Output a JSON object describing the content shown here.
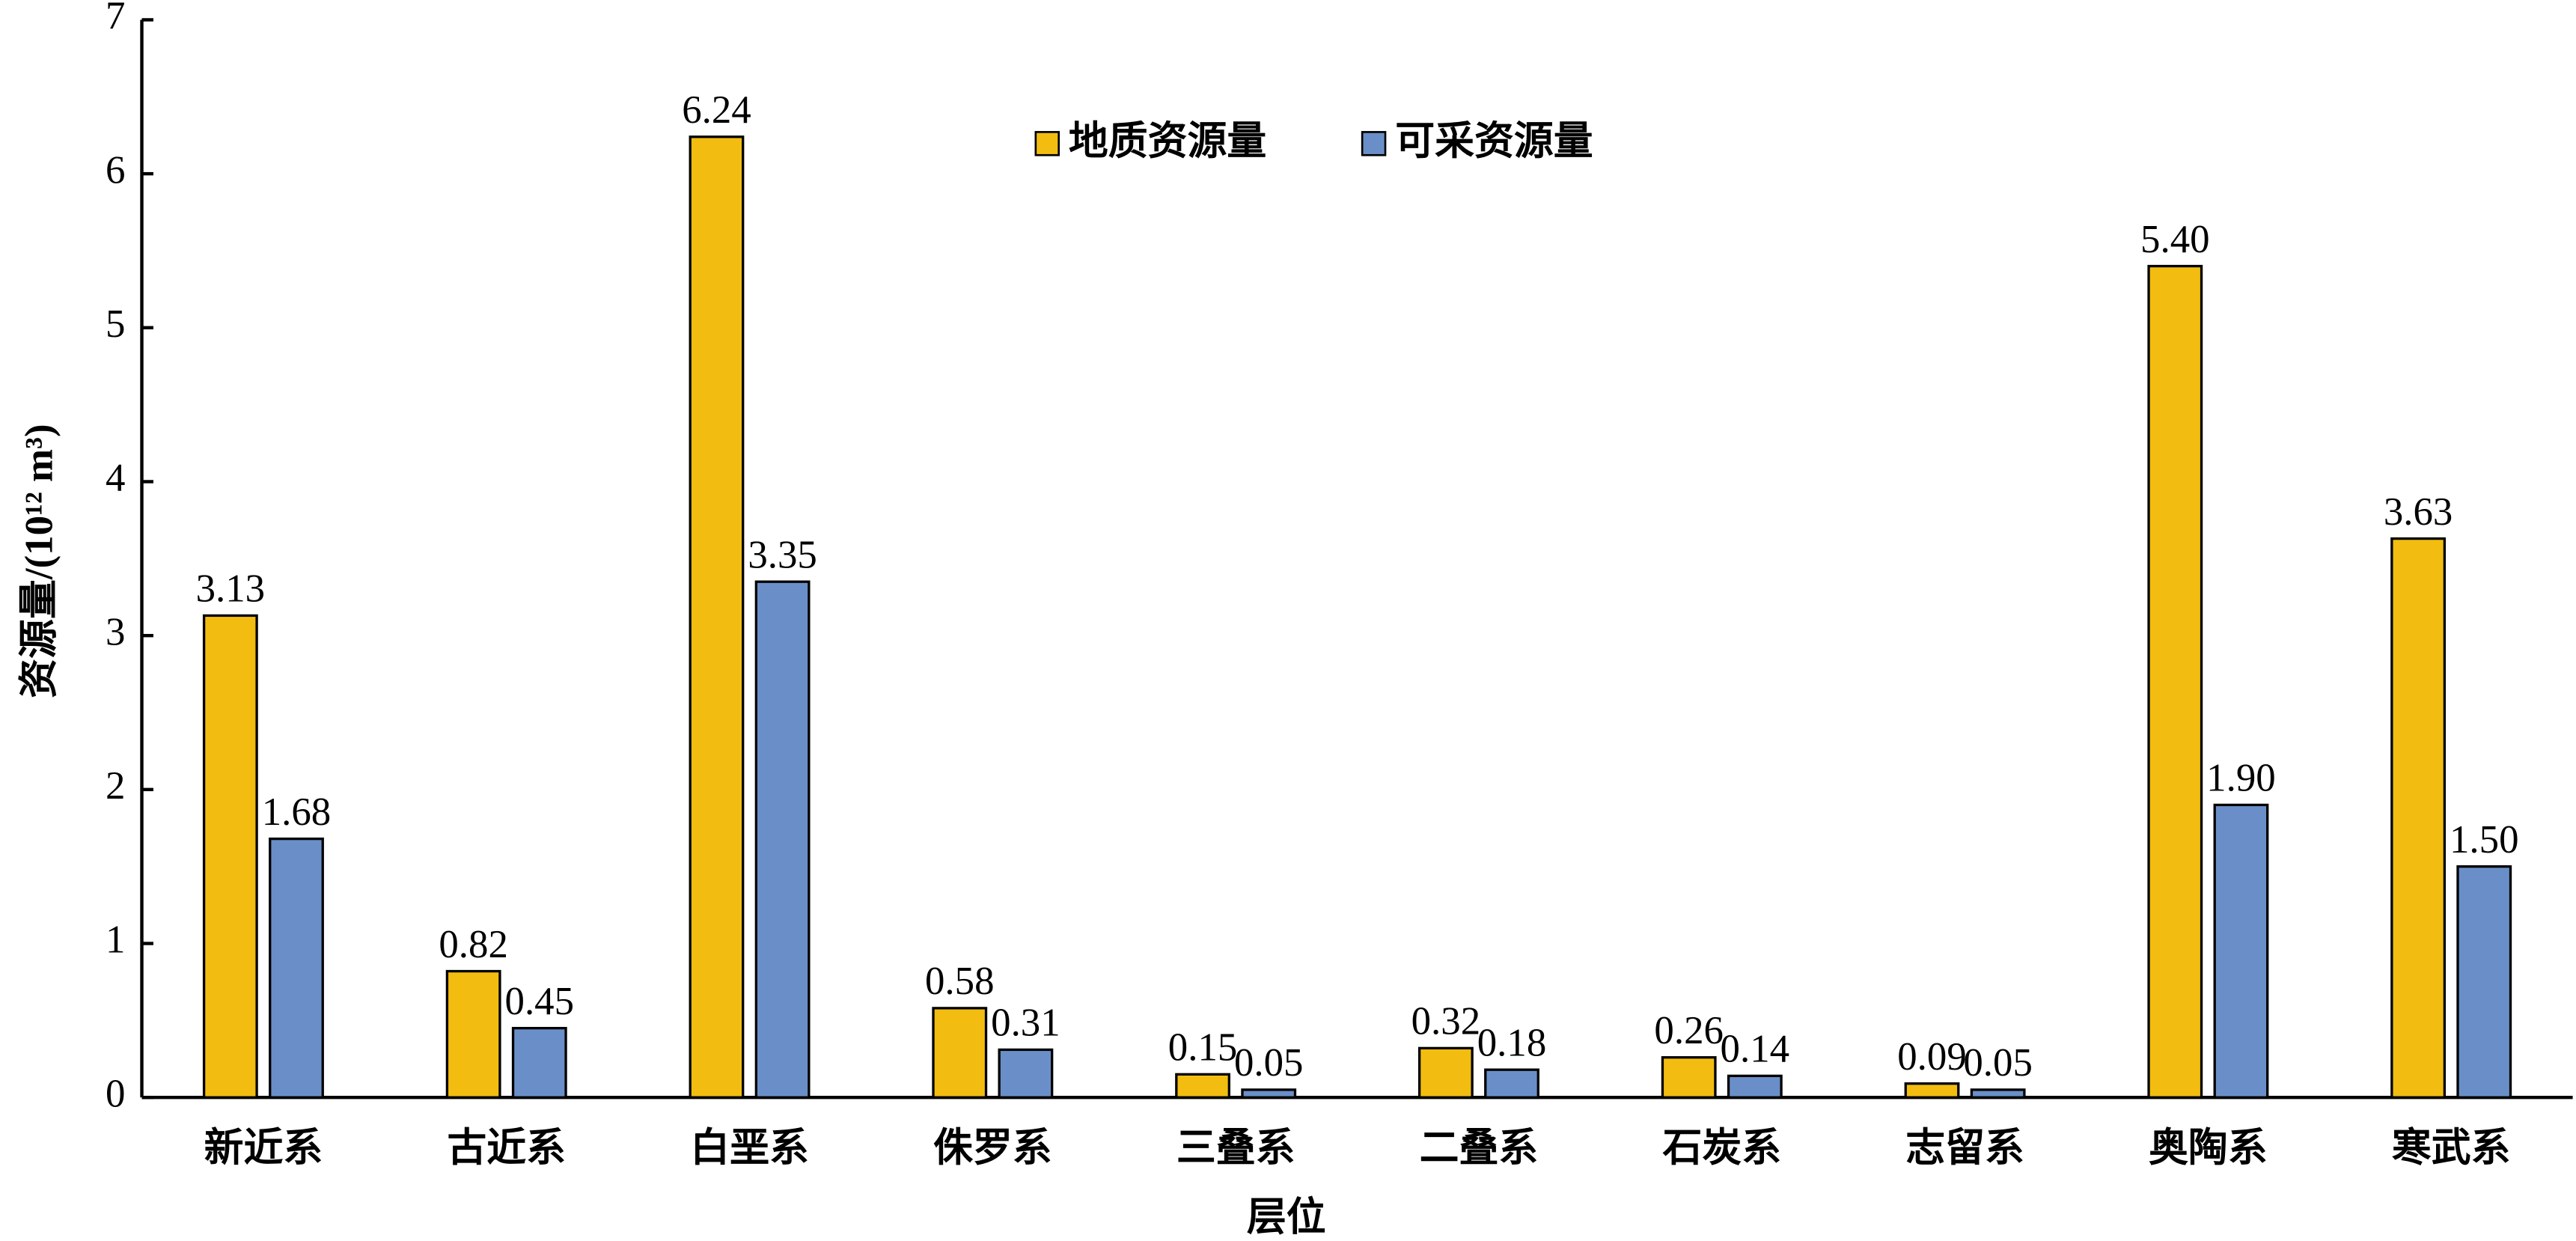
{
  "chart_data": {
    "type": "bar",
    "y_label": "资源量/(10¹² m³)",
    "x_label": "层位",
    "categories": [
      "新近系",
      "古近系",
      "白垩系",
      "侏罗系",
      "三叠系",
      "二叠系",
      "石炭系",
      "志留系",
      "奥陶系",
      "寒武系"
    ],
    "series": [
      {
        "name": "地质资源量",
        "color": "#f2bd10",
        "values": [
          3.13,
          0.82,
          6.24,
          0.58,
          0.15,
          0.32,
          0.26,
          0.09,
          5.4,
          3.63
        ],
        "value_labels": [
          "3.13",
          "0.82",
          "6.24",
          "0.58",
          "0.15",
          "0.32",
          "0.26",
          "0.09",
          "5.40",
          "3.63"
        ]
      },
      {
        "name": "可采资源量",
        "color": "#6a8fc8",
        "values": [
          1.68,
          0.45,
          3.35,
          0.31,
          0.05,
          0.18,
          0.14,
          0.05,
          1.9,
          1.5
        ],
        "value_labels": [
          "1.68",
          "0.45",
          "3.35",
          "0.31",
          "0.05",
          "0.18",
          "0.14",
          "0.05",
          "1.90",
          "1.50"
        ]
      }
    ],
    "ylim": [
      0,
      7
    ],
    "yticks": [
      0,
      1,
      2,
      3,
      4,
      5,
      6,
      7
    ],
    "legend": "top"
  }
}
